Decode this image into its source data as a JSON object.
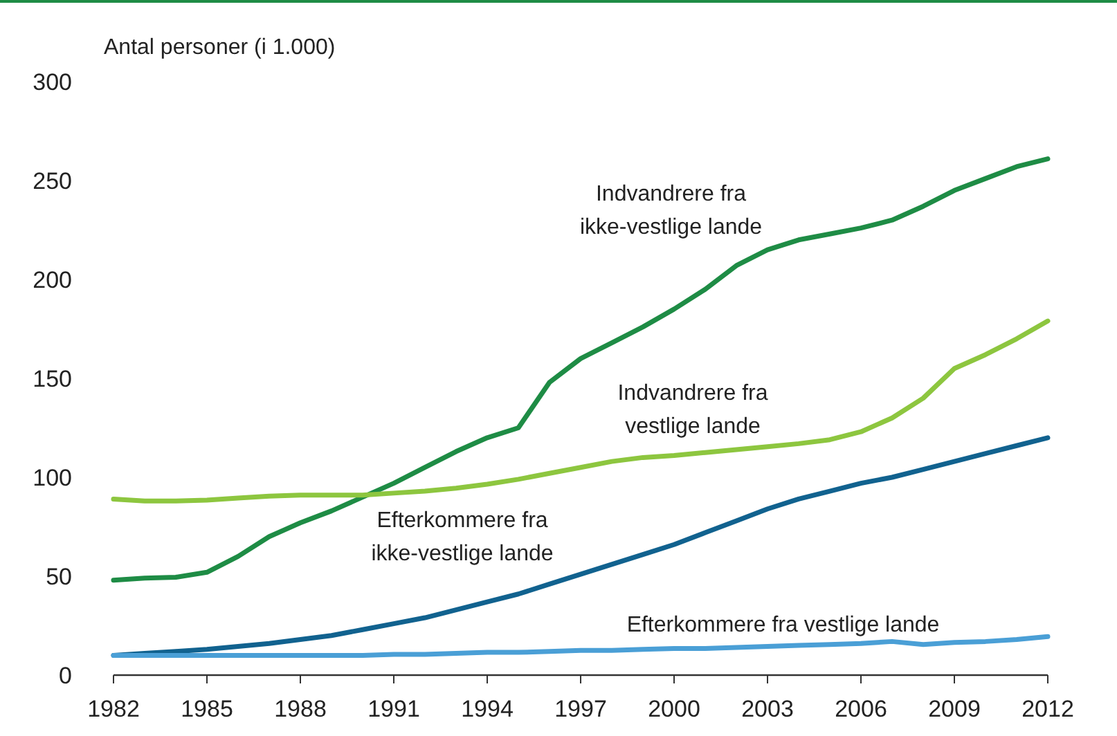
{
  "chart_data": {
    "type": "line",
    "ylabel": "Antal personer (i 1.000)",
    "x": [
      1982,
      1983,
      1984,
      1985,
      1986,
      1987,
      1988,
      1989,
      1990,
      1991,
      1992,
      1993,
      1994,
      1995,
      1996,
      1997,
      1998,
      1999,
      2000,
      2001,
      2002,
      2003,
      2004,
      2005,
      2006,
      2007,
      2008,
      2009,
      2010,
      2011,
      2012
    ],
    "xlim": [
      1982,
      2012
    ],
    "xticks": [
      1982,
      1985,
      1988,
      1991,
      1994,
      1997,
      2000,
      2003,
      2006,
      2009,
      2012
    ],
    "ylim": [
      0,
      300
    ],
    "yticks": [
      0,
      50,
      100,
      150,
      200,
      250,
      300
    ],
    "grid": false,
    "marker": "none",
    "line_style": "solid",
    "series": [
      {
        "name": "Indvandrere fra ikke-vestlige lande",
        "color": "#1e8c45",
        "values": [
          48,
          49,
          49.5,
          52,
          60,
          70,
          77,
          83,
          90,
          97,
          105,
          113,
          120,
          125,
          148,
          160,
          168,
          176,
          185,
          195,
          207,
          215,
          220,
          223,
          226,
          230,
          237,
          245,
          251,
          257,
          261
        ]
      },
      {
        "name": "Indvandrere fra vestlige lande",
        "color": "#8dc63f",
        "values": [
          89,
          88,
          88,
          88.5,
          89.5,
          90.5,
          91,
          91,
          91,
          92,
          93,
          94.5,
          96.5,
          99,
          102,
          105,
          108,
          110,
          111,
          112.5,
          114,
          115.5,
          117,
          119,
          123,
          130,
          140,
          155,
          162,
          170,
          179
        ]
      },
      {
        "name": "Efterkommere fra ikke-vestlige lande",
        "color": "#11628f",
        "values": [
          10,
          11,
          12,
          13,
          14.5,
          16,
          18,
          20,
          23,
          26,
          29,
          33,
          37,
          41,
          46,
          51,
          56,
          61,
          66,
          72,
          78,
          84,
          89,
          93,
          97,
          100,
          104,
          108,
          112,
          116,
          120
        ]
      },
      {
        "name": "Efterkommere fra vestlige lande",
        "color": "#4a9fd6",
        "values": [
          10,
          10,
          10,
          10,
          10,
          10,
          10,
          10,
          10,
          10.5,
          10.5,
          11,
          11.5,
          11.5,
          12,
          12.5,
          12.5,
          13,
          13.5,
          13.5,
          14,
          14.5,
          15,
          15.5,
          16,
          17,
          15.5,
          16.5,
          17,
          18,
          19.5
        ]
      }
    ]
  }
}
